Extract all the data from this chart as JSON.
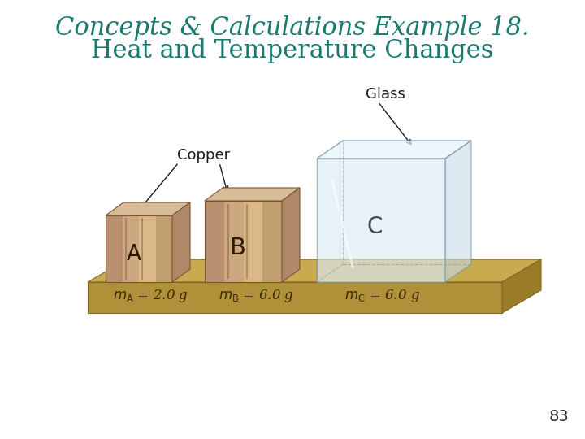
{
  "title_line1": "Concepts & Calculations Example 18.",
  "title_line2": "Heat and Temperature Changes",
  "title_color": "#1a7a6e",
  "background_color": "#ffffff",
  "page_number": "83",
  "copper_face": "#c9a882",
  "copper_top": "#d8bc98",
  "copper_side": "#b08868",
  "copper_dark_stripe": "#8a6040",
  "copper_light_stripe": "#e0c8a8",
  "glass_face": "#ddeaf2",
  "glass_top": "#e8f3fa",
  "glass_side": "#c8dce8",
  "glass_edge": "#90a8b8",
  "platform_top": "#c8aa50",
  "platform_front": "#b09038",
  "platform_side": "#9a7c28",
  "platform_edge": "#806820",
  "text_dark": "#1a1a1a",
  "mass_text": "#3a2a0a"
}
